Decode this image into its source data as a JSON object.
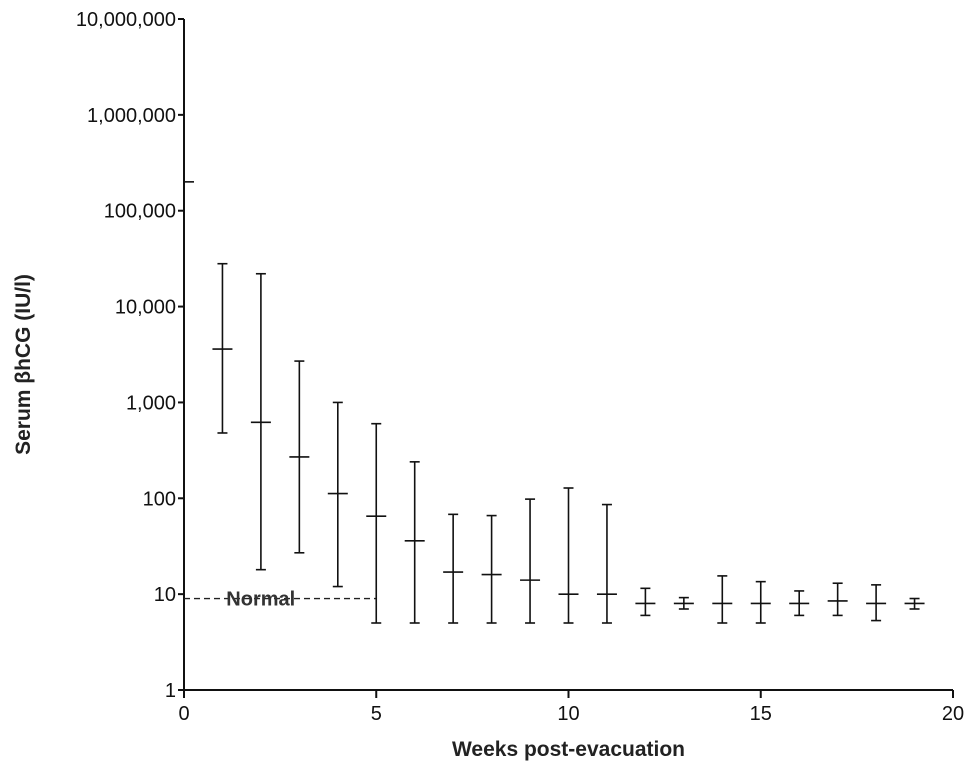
{
  "chart_data": {
    "type": "scatter",
    "title": "",
    "xlabel": "Weeks post-evacuation",
    "ylabel": "Serum βhCG (IU/l)",
    "y_scale": "log",
    "xlim": [
      0,
      20
    ],
    "ylim": [
      1,
      10000000
    ],
    "grid": false,
    "x_ticks": [
      0,
      5,
      10,
      15,
      20
    ],
    "x_tick_labels": [
      "0",
      "5",
      "10",
      "15",
      "20"
    ],
    "y_ticks": [
      1,
      10,
      100,
      1000,
      10000,
      100000,
      1000000,
      10000000
    ],
    "y_tick_labels": [
      "1",
      "10",
      "100",
      "1,000",
      "10,000",
      "100,000",
      "1,000,000",
      "10,000,000"
    ],
    "points": [
      {
        "x": 0,
        "median": 200000,
        "low": null,
        "high": null
      },
      {
        "x": 1,
        "median": 3600,
        "low": 480,
        "high": 28000
      },
      {
        "x": 2,
        "median": 620,
        "low": 18,
        "high": 22000
      },
      {
        "x": 3,
        "median": 270,
        "low": 27,
        "high": 2700
      },
      {
        "x": 4,
        "median": 112,
        "low": 12,
        "high": 1000
      },
      {
        "x": 5,
        "median": 65,
        "low": 5,
        "high": 600
      },
      {
        "x": 6,
        "median": 36,
        "low": 5,
        "high": 240
      },
      {
        "x": 7,
        "median": 17,
        "low": 5,
        "high": 68
      },
      {
        "x": 8,
        "median": 16,
        "low": 5,
        "high": 66
      },
      {
        "x": 9,
        "median": 14,
        "low": 5,
        "high": 98
      },
      {
        "x": 10,
        "median": 10,
        "low": 5,
        "high": 128
      },
      {
        "x": 11,
        "median": 10,
        "low": 5,
        "high": 86
      },
      {
        "x": 12,
        "median": 8,
        "low": 6,
        "high": 11.5
      },
      {
        "x": 13,
        "median": 8,
        "low": 7,
        "high": 9.2
      },
      {
        "x": 14,
        "median": 8,
        "low": 5,
        "high": 15.5
      },
      {
        "x": 15,
        "median": 8,
        "low": 5,
        "high": 13.5
      },
      {
        "x": 16,
        "median": 8,
        "low": 6,
        "high": 10.8
      },
      {
        "x": 17,
        "median": 8.5,
        "low": 6,
        "high": 13
      },
      {
        "x": 18,
        "median": 8,
        "low": 5.3,
        "high": 12.5
      },
      {
        "x": 19,
        "median": 8,
        "low": 7,
        "high": 9
      }
    ],
    "reference_line": {
      "label": "Normal",
      "y": 9,
      "x_start": 0,
      "x_end": 5,
      "style": "dashed"
    }
  }
}
